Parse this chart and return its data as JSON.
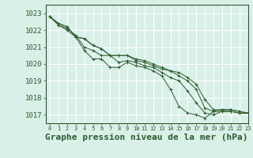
{
  "background_color": "#d8f0e8",
  "grid_color": "#ffffff",
  "line_color": "#2d5a2d",
  "marker_color": "#2d5a2d",
  "xlabel": "Graphe pression niveau de la mer (hPa)",
  "xlim": [
    -0.5,
    23
  ],
  "ylim": [
    1016.5,
    1023.5
  ],
  "yticks": [
    1017,
    1018,
    1019,
    1020,
    1021,
    1022,
    1023
  ],
  "xticks": [
    0,
    1,
    2,
    3,
    4,
    5,
    6,
    7,
    8,
    9,
    10,
    11,
    12,
    13,
    14,
    15,
    16,
    17,
    18,
    19,
    20,
    21,
    22,
    23
  ],
  "series": [
    [
      1022.8,
      1022.3,
      1022.0,
      1021.6,
      1020.8,
      1020.3,
      1020.3,
      1019.8,
      1019.8,
      1020.1,
      1019.9,
      1019.8,
      1019.6,
      1019.3,
      1018.5,
      1017.5,
      1017.1,
      1017.0,
      1016.8,
      1017.2,
      1017.2,
      1017.2,
      1017.1,
      1017.1
    ],
    [
      1022.8,
      1022.3,
      1022.1,
      1021.7,
      1021.0,
      1020.8,
      1020.5,
      1020.5,
      1020.1,
      1020.2,
      1020.1,
      1019.9,
      1019.8,
      1019.5,
      1019.2,
      1019.0,
      1018.4,
      1017.7,
      1017.1,
      1017.0,
      1017.2,
      1017.2,
      1017.1,
      1017.1
    ],
    [
      1022.8,
      1022.4,
      1022.2,
      1021.6,
      1021.5,
      1021.1,
      1020.9,
      1020.5,
      1020.5,
      1020.5,
      1020.2,
      1020.1,
      1019.9,
      1019.7,
      1019.6,
      1019.3,
      1019.0,
      1018.5,
      1017.4,
      1017.2,
      1017.3,
      1017.3,
      1017.2,
      1017.1
    ],
    [
      1022.8,
      1022.4,
      1022.2,
      1021.6,
      1021.5,
      1021.1,
      1020.9,
      1020.5,
      1020.5,
      1020.5,
      1020.3,
      1020.2,
      1020.0,
      1019.8,
      1019.6,
      1019.5,
      1019.2,
      1018.8,
      1017.9,
      1017.3,
      1017.3,
      1017.3,
      1017.2,
      1017.1
    ]
  ],
  "title_fontsize": 8,
  "tick_fontsize": 6.5,
  "xlabel_fontsize": 8
}
